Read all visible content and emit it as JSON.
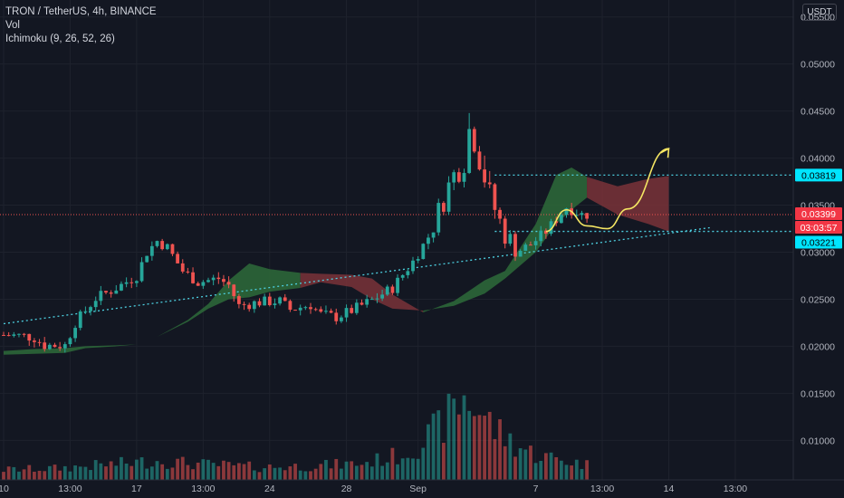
{
  "symbol_title": "TRON / TetherUS, 4h, BINANCE",
  "indicators": [
    "Vol",
    "Ichimoku (9, 26, 52, 26)"
  ],
  "currency_button": "USDT",
  "colors": {
    "background": "#131722",
    "up_candle": "#26a69a",
    "down_candle": "#ef5350",
    "cloud_bull": "#2e6b3a",
    "cloud_bear": "#7a3338",
    "trendline": "#4dd0e1",
    "projection": "#f5e663",
    "price_label": "#f23645",
    "level_label": "#00e5ff"
  },
  "chart_data": {
    "type": "candlestick",
    "y_axis_ticks": [
      "0.05500",
      "0.05000",
      "0.04500",
      "0.04000",
      "0.03500",
      "0.03000",
      "0.02500",
      "0.02000",
      "0.01500",
      "0.01000"
    ],
    "x_axis_ticks": [
      "10",
      "13:00",
      "17",
      "13:00",
      "24",
      "28",
      "Sep",
      "7",
      "13:00",
      "14",
      "13:00"
    ],
    "ylim": [
      0.0058,
      0.0568
    ],
    "price_labels": [
      {
        "text": "0.03819",
        "value": 0.03819,
        "style": "level"
      },
      {
        "text": "0.03399",
        "value": 0.03399,
        "style": "price"
      },
      {
        "text": "03:03:57",
        "value": 0.03399,
        "style": "countdown"
      },
      {
        "text": "0.03221",
        "value": 0.03221,
        "style": "level"
      }
    ],
    "horizontal_levels": [
      0.03819,
      0.03221
    ],
    "last_price": 0.03399,
    "trendline": {
      "from": [
        0,
        0.0224
      ],
      "to": [
        138,
        0.0326
      ]
    },
    "projection_path": [
      [
        106,
        0.0322
      ],
      [
        110,
        0.0345
      ],
      [
        114,
        0.0328
      ],
      [
        118,
        0.0325
      ],
      [
        122,
        0.0346
      ],
      [
        130,
        0.041
      ]
    ],
    "ohlc_close_anchors": [
      [
        0,
        0.0212
      ],
      [
        4,
        0.0211
      ],
      [
        6,
        0.0209
      ],
      [
        8,
        0.0201
      ],
      [
        12,
        0.0201
      ],
      [
        14,
        0.0225
      ],
      [
        18,
        0.0251
      ],
      [
        22,
        0.0262
      ],
      [
        26,
        0.0275
      ],
      [
        28,
        0.03
      ],
      [
        30,
        0.0312
      ],
      [
        32,
        0.0305
      ],
      [
        35,
        0.028
      ],
      [
        38,
        0.0268
      ],
      [
        42,
        0.0272
      ],
      [
        44,
        0.0265
      ],
      [
        46,
        0.0243
      ],
      [
        50,
        0.0247
      ],
      [
        54,
        0.0248
      ],
      [
        56,
        0.0239
      ],
      [
        60,
        0.0244
      ],
      [
        62,
        0.0234
      ],
      [
        65,
        0.0231
      ],
      [
        68,
        0.0238
      ],
      [
        72,
        0.0249
      ],
      [
        76,
        0.0262
      ],
      [
        80,
        0.029
      ],
      [
        84,
        0.0325
      ],
      [
        86,
        0.0358
      ],
      [
        88,
        0.0382
      ],
      [
        90,
        0.0398
      ],
      [
        91,
        0.043
      ],
      [
        92,
        0.042
      ],
      [
        93,
        0.04
      ],
      [
        95,
        0.036
      ],
      [
        97,
        0.0332
      ],
      [
        100,
        0.03
      ],
      [
        103,
        0.0308
      ],
      [
        106,
        0.0322
      ],
      [
        110,
        0.0348
      ],
      [
        113,
        0.034
      ]
    ],
    "volume_close_anchors": [
      [
        0,
        0.8
      ],
      [
        10,
        0.9
      ],
      [
        20,
        1.2
      ],
      [
        30,
        1.5
      ],
      [
        40,
        1.2
      ],
      [
        50,
        1.0
      ],
      [
        60,
        1.1
      ],
      [
        70,
        1.3
      ],
      [
        78,
        2.0
      ],
      [
        82,
        3.0
      ],
      [
        86,
        4.5
      ],
      [
        90,
        6.5
      ],
      [
        93,
        5.5
      ],
      [
        96,
        4.0
      ],
      [
        100,
        2.8
      ],
      [
        104,
        2.0
      ],
      [
        110,
        1.5
      ],
      [
        114,
        1.2
      ]
    ],
    "cloud_segments": [
      {
        "kind": "bull",
        "points_a": [
          [
            0,
            0.0191
          ],
          [
            6,
            0.0192
          ],
          [
            12,
            0.0193
          ],
          [
            16,
            0.0198
          ],
          [
            22,
            0.02
          ],
          [
            26,
            0.0202
          ]
        ],
        "points_b": [
          [
            0,
            0.0195
          ],
          [
            6,
            0.0197
          ],
          [
            12,
            0.0198
          ],
          [
            16,
            0.02
          ],
          [
            22,
            0.0201
          ],
          [
            26,
            0.0202
          ]
        ]
      },
      {
        "kind": "bull",
        "points_a": [
          [
            30,
            0.021
          ],
          [
            36,
            0.0228
          ],
          [
            40,
            0.0245
          ],
          [
            44,
            0.027
          ],
          [
            48,
            0.0288
          ],
          [
            52,
            0.0282
          ],
          [
            58,
            0.0278
          ]
        ],
        "points_b": [
          [
            30,
            0.021
          ],
          [
            36,
            0.0226
          ],
          [
            40,
            0.024
          ],
          [
            44,
            0.025
          ],
          [
            48,
            0.0252
          ],
          [
            52,
            0.0258
          ],
          [
            58,
            0.0262
          ]
        ]
      },
      {
        "kind": "bear",
        "points_a": [
          [
            58,
            0.0278
          ],
          [
            62,
            0.0277
          ],
          [
            68,
            0.0276
          ],
          [
            72,
            0.0272
          ],
          [
            76,
            0.0255
          ],
          [
            82,
            0.0236
          ]
        ],
        "points_b": [
          [
            58,
            0.0262
          ],
          [
            62,
            0.0268
          ],
          [
            68,
            0.0263
          ],
          [
            72,
            0.025
          ],
          [
            76,
            0.024
          ],
          [
            82,
            0.0238
          ]
        ]
      },
      {
        "kind": "bull",
        "points_a": [
          [
            82,
            0.0236
          ],
          [
            88,
            0.0248
          ],
          [
            94,
            0.027
          ],
          [
            98,
            0.028
          ],
          [
            104,
            0.033
          ],
          [
            108,
            0.0382
          ],
          [
            111,
            0.039
          ],
          [
            114,
            0.038
          ]
        ],
        "points_b": [
          [
            82,
            0.0238
          ],
          [
            88,
            0.0243
          ],
          [
            94,
            0.0256
          ],
          [
            98,
            0.0272
          ],
          [
            104,
            0.03
          ],
          [
            108,
            0.033
          ],
          [
            111,
            0.0345
          ],
          [
            114,
            0.0358
          ]
        ]
      },
      {
        "kind": "bear",
        "points_a": [
          [
            114,
            0.038
          ],
          [
            120,
            0.037
          ],
          [
            126,
            0.0378
          ],
          [
            130,
            0.0381
          ]
        ],
        "points_b": [
          [
            114,
            0.0358
          ],
          [
            120,
            0.034
          ],
          [
            126,
            0.033
          ],
          [
            130,
            0.0322
          ]
        ]
      }
    ]
  }
}
